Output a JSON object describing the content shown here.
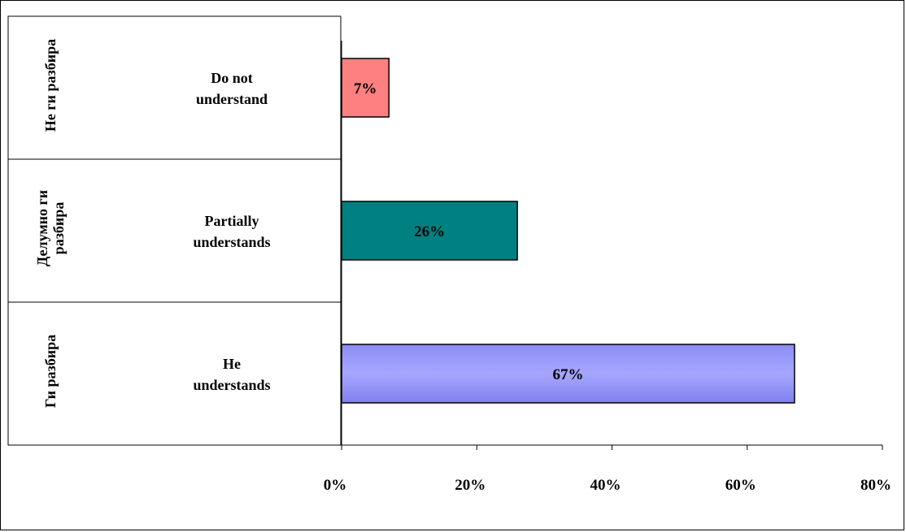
{
  "chart_data": {
    "type": "bar",
    "orientation": "horizontal",
    "title": "",
    "xlabel": "",
    "ylabel": "",
    "xlim": [
      0,
      80
    ],
    "x_ticks": [
      "0%",
      "20%",
      "40%",
      "60%",
      "80%"
    ],
    "grid": false,
    "legend": "none",
    "categories": [
      {
        "group_label": "Не ги разбира",
        "group_label_lines": [
          "Не ги разбира"
        ],
        "label": "Do not understand",
        "label_lines": [
          "Do not",
          "understand"
        ],
        "value": 7,
        "value_label": "7%",
        "color": "#ff8080"
      },
      {
        "group_label": "Делумно ги разбира",
        "group_label_lines": [
          "Делумно ги",
          "разбира"
        ],
        "label": "Partially understands",
        "label_lines": [
          "Partially",
          "understands"
        ],
        "value": 26,
        "value_label": "26%",
        "color": "#008080"
      },
      {
        "group_label": "Ги разбира",
        "group_label_lines": [
          "Ги разбира"
        ],
        "label": "He understands",
        "label_lines": [
          "He",
          "understands"
        ],
        "value": 67,
        "value_label": "67%",
        "color": "#9999ff"
      }
    ]
  }
}
